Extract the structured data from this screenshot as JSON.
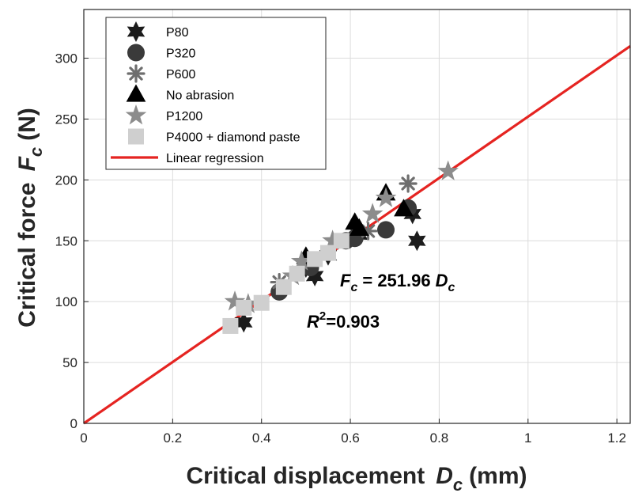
{
  "chart_data": {
    "type": "scatter",
    "xlabel": {
      "prefix": "Critical displacement",
      "var": "D",
      "sub": "c",
      "suffix": "(mm)"
    },
    "ylabel": {
      "prefix": "Critical force",
      "var": "F",
      "sub": "c",
      "suffix": "(N)"
    },
    "xlim": [
      0,
      1.23
    ],
    "ylim": [
      0,
      340
    ],
    "xticks": [
      0,
      0.2,
      0.4,
      0.6,
      0.8,
      1,
      1.2
    ],
    "xtick_labels": [
      "0",
      "0.2",
      "0.4",
      "0.6",
      "0.8",
      "1",
      "1.2"
    ],
    "yticks": [
      0,
      50,
      100,
      150,
      200,
      250,
      300
    ],
    "ytick_labels": [
      "0",
      "50",
      "100",
      "150",
      "200",
      "250",
      "300"
    ],
    "grid": true,
    "legend_position": "top-left",
    "series": [
      {
        "name": "P80",
        "marker": "hexagram",
        "color": "#1c1c1c",
        "x": [
          0.36,
          0.52,
          0.5,
          0.55,
          0.62,
          0.74,
          0.75
        ],
        "y": [
          83,
          121,
          128,
          138,
          155,
          172,
          150
        ]
      },
      {
        "name": "P320",
        "marker": "circle",
        "color": "#3a3a3a",
        "x": [
          0.44,
          0.51,
          0.59,
          0.61,
          0.68,
          0.73
        ],
        "y": [
          108,
          128,
          150,
          152,
          159,
          177
        ]
      },
      {
        "name": "P600",
        "marker": "asterisk",
        "color": "#6e6e6e",
        "x": [
          0.44,
          0.64,
          0.73
        ],
        "y": [
          116,
          158,
          197
        ]
      },
      {
        "name": "No abrasion",
        "marker": "triangle",
        "color": "#000000",
        "x": [
          0.5,
          0.61,
          0.62,
          0.68,
          0.72
        ],
        "y": [
          137,
          165,
          160,
          189,
          176
        ]
      },
      {
        "name": "P1200",
        "marker": "star",
        "color": "#8c8c8c",
        "x": [
          0.34,
          0.37,
          0.47,
          0.49,
          0.56,
          0.65,
          0.68,
          0.82
        ],
        "y": [
          100,
          98,
          121,
          133,
          150,
          172,
          185,
          207
        ]
      },
      {
        "name": "P4000 + diamond paste",
        "marker": "square",
        "color": "#cfcfcf",
        "x": [
          0.33,
          0.36,
          0.4,
          0.45,
          0.48,
          0.52,
          0.55,
          0.58
        ],
        "y": [
          80,
          95,
          99,
          112,
          123,
          135,
          140,
          150
        ]
      },
      {
        "name": "Linear regression",
        "marker": "line",
        "color": "#e52421",
        "slope": 251.96,
        "x": [
          0,
          1.23
        ],
        "y": [
          0,
          309.9
        ]
      }
    ],
    "annotations": {
      "equation": {
        "var_left": "F",
        "sub_left": "c",
        "text": "= 251.96",
        "var_right": "D",
        "sub_right": "c"
      },
      "r2": {
        "var": "R",
        "sup": "2",
        "text": "=0.903"
      }
    }
  }
}
